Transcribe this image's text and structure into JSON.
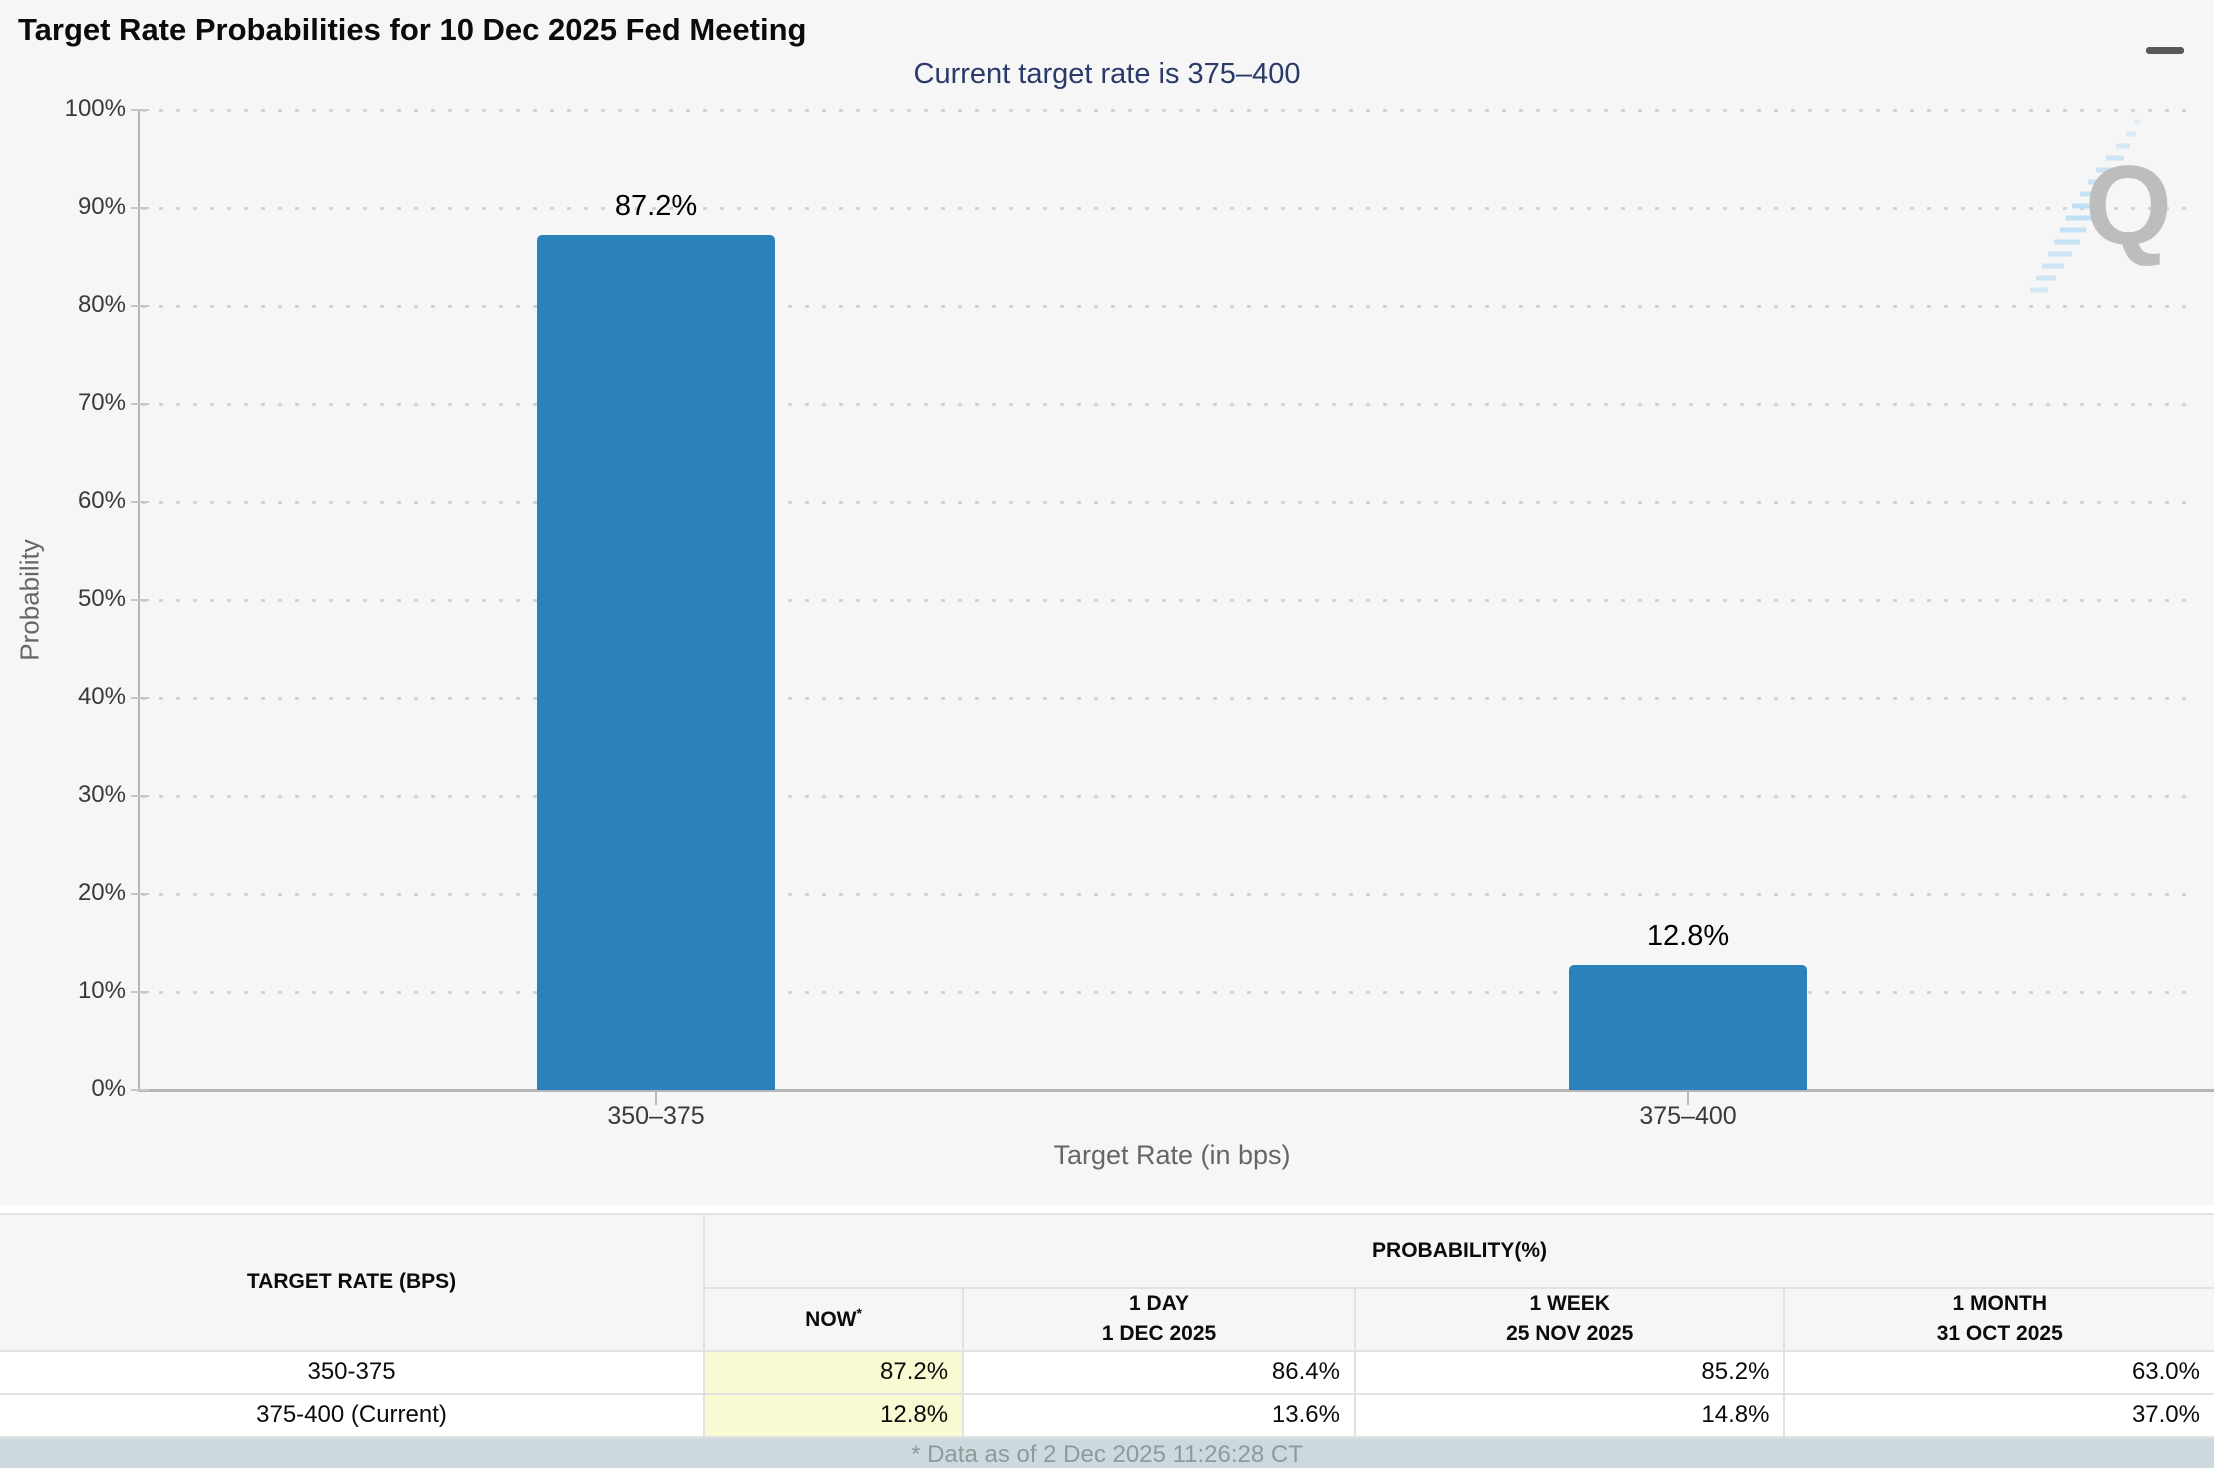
{
  "page": {
    "title": "Target Rate Probabilities for 10 Dec 2025 Fed Meeting"
  },
  "chart": {
    "subtitle": "Current target rate is 375–400",
    "watermark_letter": "Q",
    "accent_colors": {
      "bar": "#2b81ba",
      "subtitle_text": "#2b3a68",
      "watermark_blue": "#b9ddf5"
    }
  },
  "chart_data": {
    "type": "bar",
    "title": "Target Rate Probabilities for 10 Dec 2025 Fed Meeting",
    "subtitle": "Current target rate is 375–400",
    "categories": [
      "350–375",
      "375–400"
    ],
    "values": [
      87.2,
      12.8
    ],
    "value_labels": [
      "87.2%",
      "12.8%"
    ],
    "xlabel": "Target Rate (in bps)",
    "ylabel": "Probability",
    "ylim": [
      0,
      100
    ],
    "ytick_step": 10,
    "ytick_labels": [
      "0%",
      "10%",
      "20%",
      "30%",
      "40%",
      "50%",
      "60%",
      "70%",
      "80%",
      "90%",
      "100%"
    ],
    "grid": "dotted-horizontal",
    "legend": "none",
    "bar_color": "#2b81ba"
  },
  "table": {
    "col1_header": "TARGET RATE (BPS)",
    "group_header": "PROBABILITY(%)",
    "now": {
      "label": "NOW",
      "sup": "*"
    },
    "periods": [
      {
        "line1": "1 DAY",
        "line2": "1 DEC 2025"
      },
      {
        "line1": "1 WEEK",
        "line2": "25 NOV 2025"
      },
      {
        "line1": "1 MONTH",
        "line2": "31 OCT 2025"
      }
    ],
    "rows": [
      {
        "rate": "350-375",
        "now": "87.2%",
        "day1": "86.4%",
        "week1": "85.2%",
        "month1": "63.0%"
      },
      {
        "rate": "375-400 (Current)",
        "now": "12.8%",
        "day1": "13.6%",
        "week1": "14.8%",
        "month1": "37.0%"
      }
    ],
    "now_highlight_color": "#fafad2"
  },
  "footer": {
    "note": "* Data as of 2 Dec 2025 11:26:28 CT"
  }
}
